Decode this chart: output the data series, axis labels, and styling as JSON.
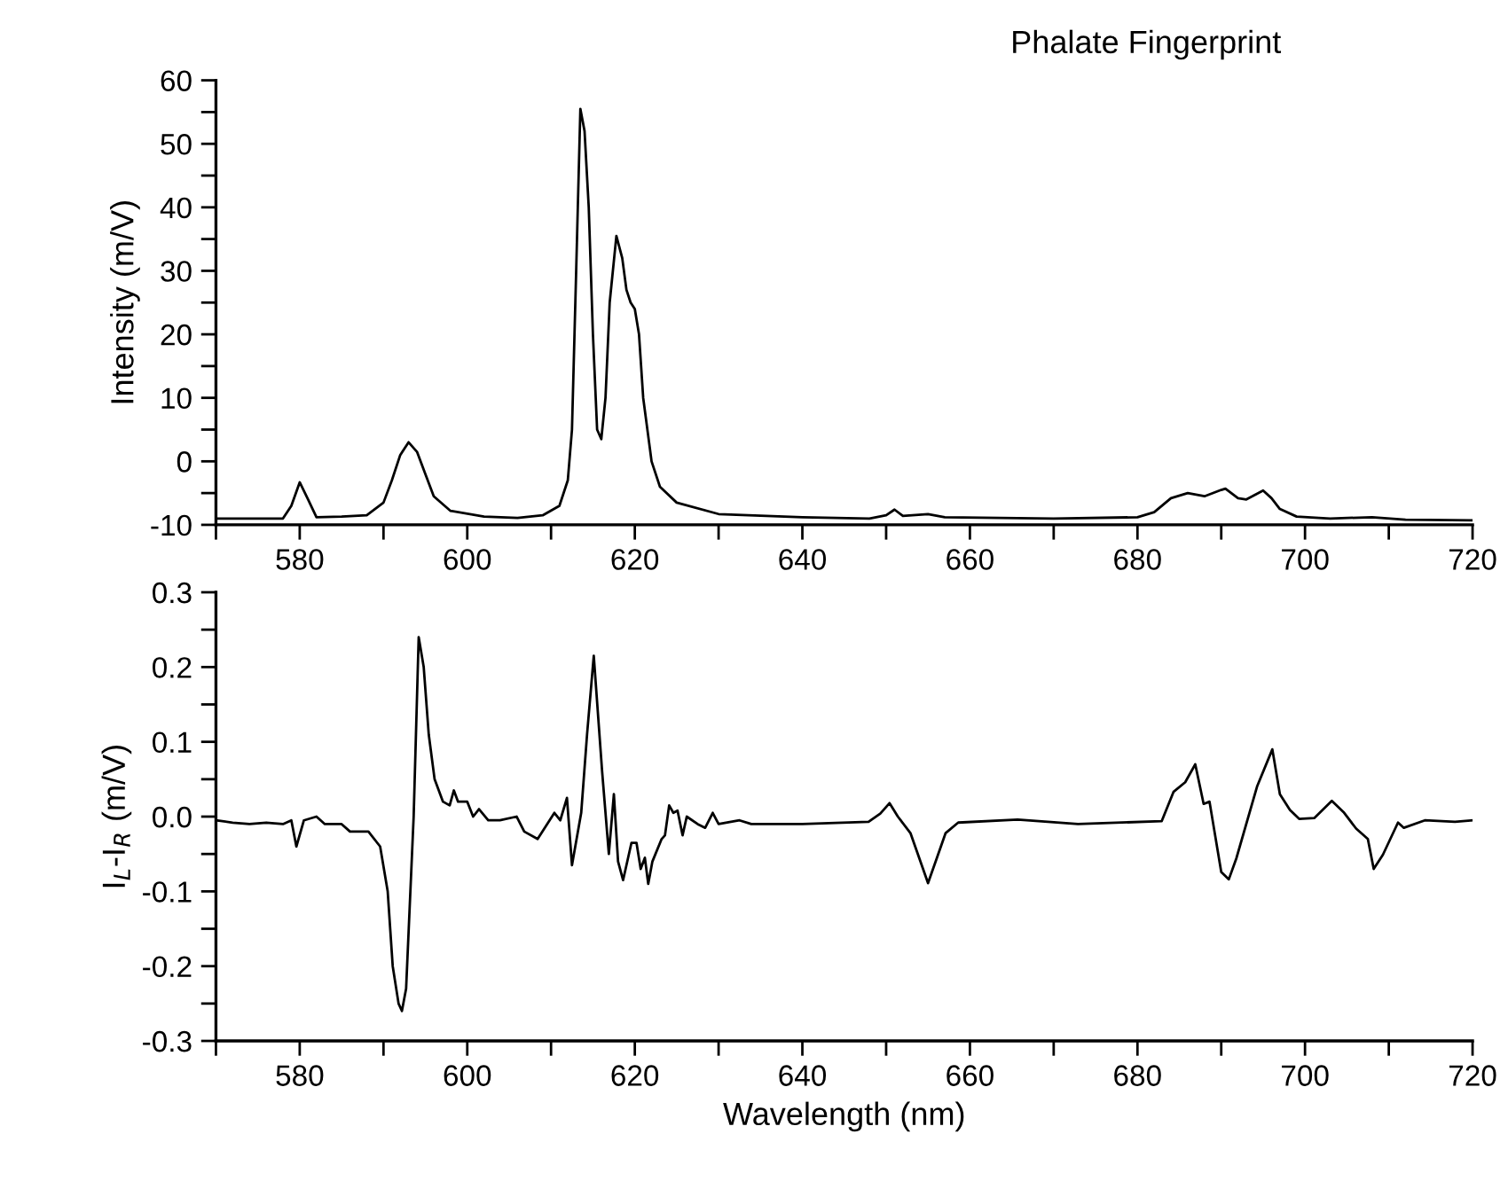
{
  "chart_data": [
    {
      "type": "line",
      "title": "Phalate Fingerprint",
      "ylabel": "Intensity (m/V)",
      "xlim": [
        570,
        720
      ],
      "ylim": [
        -10,
        60
      ],
      "xticks": [
        {
          "value": 570,
          "label": null
        },
        580,
        {
          "value": 590,
          "label": null
        },
        600,
        {
          "value": 610,
          "label": null
        },
        620,
        {
          "value": 630,
          "label": null
        },
        640,
        {
          "value": 650,
          "label": null
        },
        660,
        {
          "value": 670,
          "label": null
        },
        680,
        {
          "value": 690,
          "label": null
        },
        700,
        {
          "value": 710,
          "label": null
        },
        720
      ],
      "yticks": [
        -10,
        {
          "value": -5,
          "label": null
        },
        0,
        {
          "value": 5,
          "label": null
        },
        10,
        {
          "value": 15,
          "label": null
        },
        20,
        {
          "value": 25,
          "label": null
        },
        30,
        {
          "value": 35,
          "label": null
        },
        40,
        {
          "value": 45,
          "label": null
        },
        50,
        {
          "value": 55,
          "label": null
        },
        60
      ],
      "grid": false,
      "marker": "none",
      "line_style": "solid",
      "series": [
        {
          "color": "#000000",
          "x": [
            570,
            578,
            579,
            580,
            581,
            582,
            585,
            588,
            590,
            591,
            592,
            593,
            594,
            595,
            596,
            598,
            602,
            606,
            609,
            611,
            612,
            612.5,
            613,
            613.5,
            614,
            614.5,
            615,
            615.5,
            616,
            616.5,
            617,
            617.8,
            618.5,
            619,
            619.5,
            620,
            620.5,
            621,
            622,
            623,
            625,
            630,
            640,
            648,
            650,
            651,
            652,
            655,
            657,
            670,
            680,
            682,
            684,
            686,
            688,
            690,
            690.5,
            692,
            693,
            695,
            696,
            697,
            699,
            703,
            708,
            712,
            720
          ],
          "values": [
            -9,
            -9,
            -7,
            -3.3,
            -6,
            -8.8,
            -8.7,
            -8.5,
            -6.5,
            -3,
            1,
            3,
            1.5,
            -2,
            -5.5,
            -7.8,
            -8.7,
            -8.9,
            -8.5,
            -7,
            -3,
            5,
            30,
            55.5,
            52,
            40,
            20,
            5,
            3.5,
            10,
            25,
            35.5,
            32,
            27,
            25,
            24,
            20,
            10,
            0,
            -4,
            -6.5,
            -8.3,
            -8.8,
            -9,
            -8.5,
            -7.6,
            -8.6,
            -8.3,
            -8.8,
            -9,
            -8.8,
            -8,
            -5.8,
            -5,
            -5.5,
            -4.5,
            -4.3,
            -5.8,
            -6,
            -4.6,
            -5.8,
            -7.5,
            -8.7,
            -9,
            -8.8,
            -9.2,
            -9.3
          ]
        }
      ]
    },
    {
      "type": "line",
      "xlabel": "Wavelength (nm)",
      "ylabel": "I$_{L}$-I$_{R}$ (m/V)",
      "xlim": [
        570,
        720
      ],
      "ylim": [
        -0.3,
        0.3
      ],
      "xticks": [
        {
          "value": 570,
          "label": null
        },
        580,
        {
          "value": 590,
          "label": null
        },
        600,
        {
          "value": 610,
          "label": null
        },
        620,
        {
          "value": 630,
          "label": null
        },
        640,
        {
          "value": 650,
          "label": null
        },
        660,
        {
          "value": 670,
          "label": null
        },
        680,
        {
          "value": 690,
          "label": null
        },
        700,
        {
          "value": 710,
          "label": null
        },
        720
      ],
      "yticks": [
        {
          "value": -0.3,
          "label": "-0.3"
        },
        {
          "value": -0.25,
          "label": null
        },
        {
          "value": -0.2,
          "label": "-0.2"
        },
        {
          "value": -0.15,
          "label": null
        },
        {
          "value": -0.1,
          "label": "-0.1"
        },
        {
          "value": -0.05,
          "label": null
        },
        {
          "value": 0,
          "label": "0.0"
        },
        {
          "value": 0.05,
          "label": null
        },
        0.1,
        {
          "value": 0.15,
          "label": null
        },
        0.2,
        {
          "value": 0.25,
          "label": null
        },
        0.3
      ],
      "grid": false,
      "marker": "none",
      "line_style": "solid",
      "series": [
        {
          "color": "#000000",
          "x": [
            570,
            572,
            574,
            576,
            578,
            579,
            579.6,
            580.5,
            582,
            583,
            585,
            586,
            588.2,
            589.6,
            590.5,
            591.1,
            591.8,
            592.2,
            592.7,
            593.6,
            594.2,
            594.8,
            595.4,
            596.1,
            597.1,
            597.9,
            598.4,
            598.9,
            600,
            600.7,
            601.4,
            602.5,
            603.9,
            605.9,
            606.8,
            608.4,
            610.4,
            611.1,
            611.9,
            612.5,
            613.6,
            614.3,
            615.1,
            616.1,
            616.9,
            617.5,
            618,
            618.6,
            619.6,
            620.2,
            620.7,
            621.2,
            621.6,
            622.1,
            623.2,
            623.6,
            624.1,
            624.6,
            625.1,
            625.7,
            626.2,
            627.5,
            628.4,
            629.3,
            630,
            632.5,
            633.9,
            636.8,
            640,
            647.9,
            649.3,
            650.4,
            651.4,
            652.9,
            655,
            656.1,
            657.1,
            658.6,
            665.7,
            672.9,
            682.9,
            684.3,
            685.7,
            686.9,
            687.9,
            688.6,
            690,
            690.9,
            691.8,
            694.3,
            696.1,
            697,
            698.2,
            699.3,
            701.1,
            703.2,
            704.6,
            706.1,
            707.5,
            708.2,
            709.3,
            711.1,
            711.8,
            714.3,
            717.9,
            720
          ],
          "values": [
            -0.005,
            -0.008,
            -0.01,
            -0.008,
            -0.01,
            -0.005,
            -0.04,
            -0.005,
            0.0,
            -0.01,
            -0.01,
            -0.02,
            -0.02,
            -0.04,
            -0.1,
            -0.2,
            -0.25,
            -0.26,
            -0.23,
            0.0,
            0.24,
            0.2,
            0.11,
            0.05,
            0.02,
            0.015,
            0.035,
            0.02,
            0.02,
            0.0,
            0.01,
            -0.005,
            -0.005,
            0.0,
            -0.02,
            -0.03,
            0.005,
            -0.005,
            0.025,
            -0.065,
            0.005,
            0.11,
            0.215,
            0.06,
            -0.05,
            0.03,
            -0.06,
            -0.085,
            -0.035,
            -0.035,
            -0.07,
            -0.055,
            -0.09,
            -0.06,
            -0.03,
            -0.025,
            0.015,
            0.005,
            0.008,
            -0.025,
            0.0,
            -0.01,
            -0.015,
            0.005,
            -0.01,
            -0.005,
            -0.01,
            -0.01,
            -0.01,
            -0.007,
            0.004,
            0.018,
            0.0,
            -0.022,
            -0.089,
            -0.054,
            -0.022,
            -0.008,
            -0.004,
            -0.01,
            -0.006,
            0.033,
            0.046,
            0.07,
            0.017,
            0.02,
            -0.074,
            -0.084,
            -0.056,
            0.041,
            0.09,
            0.03,
            0.009,
            -0.003,
            -0.002,
            0.021,
            0.006,
            -0.016,
            -0.03,
            -0.07,
            -0.051,
            -0.008,
            -0.015,
            -0.005,
            -0.007,
            -0.005
          ]
        }
      ]
    }
  ]
}
